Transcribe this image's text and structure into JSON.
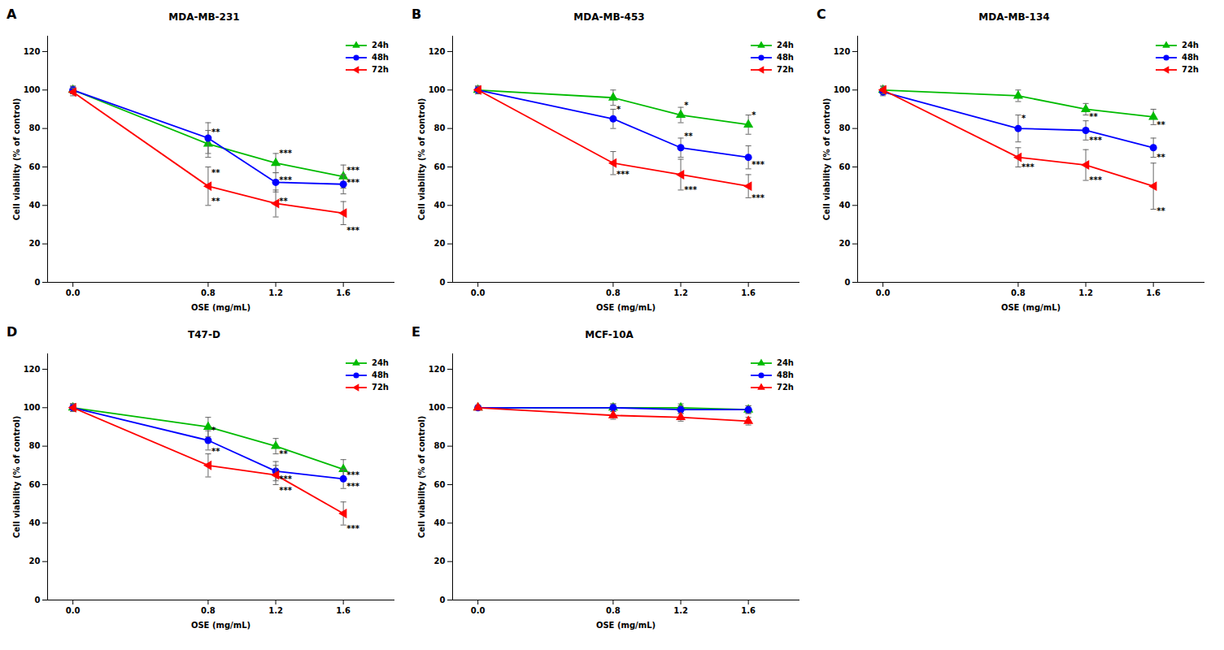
{
  "chart_data": [
    {
      "type": "line",
      "panel_label": "A",
      "title": "MDA-MB-231",
      "xlabel": "OSE (mg/mL)",
      "ylabel": "Cell viability (% of control)",
      "x": [
        0,
        0.8,
        1.2,
        1.6
      ],
      "series": [
        {
          "name": "24h",
          "color": "#00bb00",
          "marker": "triangle-up",
          "values": [
            100,
            72,
            62,
            55
          ],
          "yerr": [
            2,
            7,
            5,
            6
          ]
        },
        {
          "name": "48h",
          "color": "#0000ff",
          "marker": "circle",
          "values": [
            100,
            75,
            52,
            51
          ],
          "yerr": [
            2,
            8,
            5,
            5
          ]
        },
        {
          "name": "72h",
          "color": "#ff0000",
          "marker": "triangle-left",
          "values": [
            99,
            50,
            41,
            36
          ],
          "yerr": [
            2,
            10,
            7,
            6
          ]
        }
      ],
      "annotations": [
        {
          "x": 0.82,
          "y": 78,
          "text": "**"
        },
        {
          "x": 0.82,
          "y": 57,
          "text": "**"
        },
        {
          "x": 0.82,
          "y": 42,
          "text": "**"
        },
        {
          "x": 1.22,
          "y": 67,
          "text": "***"
        },
        {
          "x": 1.22,
          "y": 53,
          "text": "***"
        },
        {
          "x": 1.22,
          "y": 42,
          "text": "**"
        },
        {
          "x": 1.62,
          "y": 58,
          "text": "***"
        },
        {
          "x": 1.62,
          "y": 52,
          "text": "***"
        },
        {
          "x": 1.62,
          "y": 27,
          "text": "***"
        }
      ],
      "xlim": [
        -0.15,
        1.9
      ],
      "xticks": [
        0,
        0.8,
        1.2,
        1.6
      ],
      "ylim": [
        0,
        128
      ],
      "yticks": [
        0,
        20,
        40,
        60,
        80,
        100,
        120
      ],
      "legend": "upper right",
      "grid": false
    },
    {
      "type": "line",
      "panel_label": "B",
      "title": "MDA-MB-453",
      "xlabel": "OSE (mg/mL)",
      "ylabel": "Cell viability (% of control)",
      "x": [
        0,
        0.8,
        1.2,
        1.6
      ],
      "series": [
        {
          "name": "24h",
          "color": "#00bb00",
          "marker": "triangle-up",
          "values": [
            100,
            96,
            87,
            82
          ],
          "yerr": [
            2,
            4,
            4,
            5
          ]
        },
        {
          "name": "48h",
          "color": "#0000ff",
          "marker": "circle",
          "values": [
            100,
            85,
            70,
            65
          ],
          "yerr": [
            2,
            5,
            5,
            6
          ]
        },
        {
          "name": "72h",
          "color": "#ff0000",
          "marker": "triangle-left",
          "values": [
            100,
            62,
            56,
            50
          ],
          "yerr": [
            2,
            6,
            8,
            6
          ]
        }
      ],
      "annotations": [
        {
          "x": 0.82,
          "y": 90,
          "text": "*"
        },
        {
          "x": 0.82,
          "y": 56,
          "text": "***"
        },
        {
          "x": 1.22,
          "y": 92,
          "text": "*"
        },
        {
          "x": 1.22,
          "y": 76,
          "text": "**"
        },
        {
          "x": 1.22,
          "y": 48,
          "text": "***"
        },
        {
          "x": 1.62,
          "y": 87,
          "text": "*"
        },
        {
          "x": 1.62,
          "y": 61,
          "text": "***"
        },
        {
          "x": 1.62,
          "y": 44,
          "text": "***"
        }
      ],
      "xlim": [
        -0.15,
        1.9
      ],
      "xticks": [
        0,
        0.8,
        1.2,
        1.6
      ],
      "ylim": [
        0,
        128
      ],
      "yticks": [
        0,
        20,
        40,
        60,
        80,
        100,
        120
      ],
      "legend": "upper right",
      "grid": false
    },
    {
      "type": "line",
      "panel_label": "C",
      "title": "MDA-MB-134",
      "xlabel": "OSE (mg/mL)",
      "ylabel": "Cell viability (% of control)",
      "x": [
        0,
        0.8,
        1.2,
        1.6
      ],
      "series": [
        {
          "name": "24h",
          "color": "#00bb00",
          "marker": "triangle-up",
          "values": [
            100,
            97,
            90,
            86
          ],
          "yerr": [
            2,
            3,
            3,
            4
          ]
        },
        {
          "name": "48h",
          "color": "#0000ff",
          "marker": "circle",
          "values": [
            99,
            80,
            79,
            70
          ],
          "yerr": [
            2,
            7,
            5,
            5
          ]
        },
        {
          "name": "72h",
          "color": "#ff0000",
          "marker": "triangle-left",
          "values": [
            100,
            65,
            61,
            50
          ],
          "yerr": [
            2,
            5,
            8,
            12
          ]
        }
      ],
      "annotations": [
        {
          "x": 0.82,
          "y": 85,
          "text": "*"
        },
        {
          "x": 0.82,
          "y": 60,
          "text": "***"
        },
        {
          "x": 1.22,
          "y": 86,
          "text": "**"
        },
        {
          "x": 1.22,
          "y": 74,
          "text": "***"
        },
        {
          "x": 1.22,
          "y": 53,
          "text": "***"
        },
        {
          "x": 1.62,
          "y": 82,
          "text": "**"
        },
        {
          "x": 1.62,
          "y": 65,
          "text": "**"
        },
        {
          "x": 1.62,
          "y": 37,
          "text": "**"
        }
      ],
      "xlim": [
        -0.15,
        1.9
      ],
      "xticks": [
        0,
        0.8,
        1.2,
        1.6
      ],
      "ylim": [
        0,
        128
      ],
      "yticks": [
        0,
        20,
        40,
        60,
        80,
        100,
        120
      ],
      "legend": "upper right",
      "grid": false
    },
    {
      "type": "line",
      "panel_label": "D",
      "title": "T47-D",
      "xlabel": "OSE (mg/mL)",
      "ylabel": "Cell viability (% of control)",
      "x": [
        0,
        0.8,
        1.2,
        1.6
      ],
      "series": [
        {
          "name": "24h",
          "color": "#00bb00",
          "marker": "triangle-up",
          "values": [
            100,
            90,
            80,
            68
          ],
          "yerr": [
            2,
            5,
            4,
            5
          ]
        },
        {
          "name": "48h",
          "color": "#0000ff",
          "marker": "circle",
          "values": [
            100,
            83,
            67,
            63
          ],
          "yerr": [
            2,
            5,
            5,
            5
          ]
        },
        {
          "name": "72h",
          "color": "#ff0000",
          "marker": "triangle-left",
          "values": [
            100,
            70,
            65,
            45
          ],
          "yerr": [
            2,
            6,
            5,
            6
          ]
        }
      ],
      "annotations": [
        {
          "x": 0.82,
          "y": 88,
          "text": "*"
        },
        {
          "x": 0.82,
          "y": 77,
          "text": "**"
        },
        {
          "x": 1.22,
          "y": 76,
          "text": "**"
        },
        {
          "x": 1.22,
          "y": 63,
          "text": "***"
        },
        {
          "x": 1.22,
          "y": 57,
          "text": "***"
        },
        {
          "x": 1.62,
          "y": 65,
          "text": "***"
        },
        {
          "x": 1.62,
          "y": 59,
          "text": "***"
        },
        {
          "x": 1.62,
          "y": 37,
          "text": "***"
        }
      ],
      "xlim": [
        -0.15,
        1.9
      ],
      "xticks": [
        0,
        0.8,
        1.2,
        1.6
      ],
      "ylim": [
        0,
        128
      ],
      "yticks": [
        0,
        20,
        40,
        60,
        80,
        100,
        120
      ],
      "legend": "upper right",
      "grid": false
    },
    {
      "type": "line",
      "panel_label": "E",
      "title": "MCF-10A",
      "xlabel": "OSE (mg/mL)",
      "ylabel": "Cell viability (% of control)",
      "x": [
        0,
        0.8,
        1.2,
        1.6
      ],
      "series": [
        {
          "name": "24h",
          "color": "#00bb00",
          "marker": "triangle-up",
          "values": [
            100,
            100,
            100,
            99
          ],
          "yerr": [
            1,
            2,
            2,
            2
          ]
        },
        {
          "name": "48h",
          "color": "#0000ff",
          "marker": "circle",
          "values": [
            100,
            100,
            99,
            99
          ],
          "yerr": [
            1,
            2,
            2,
            2
          ]
        },
        {
          "name": "72h",
          "color": "#ff0000",
          "marker": "triangle-up",
          "values": [
            100,
            96,
            95,
            93
          ],
          "yerr": [
            1,
            2,
            2,
            2
          ]
        }
      ],
      "annotations": [],
      "xlim": [
        -0.15,
        1.9
      ],
      "xticks": [
        0,
        0.8,
        1.2,
        1.6
      ],
      "ylim": [
        0,
        128
      ],
      "yticks": [
        0,
        20,
        40,
        60,
        80,
        100,
        120
      ],
      "legend": "upper right",
      "grid": false
    }
  ]
}
